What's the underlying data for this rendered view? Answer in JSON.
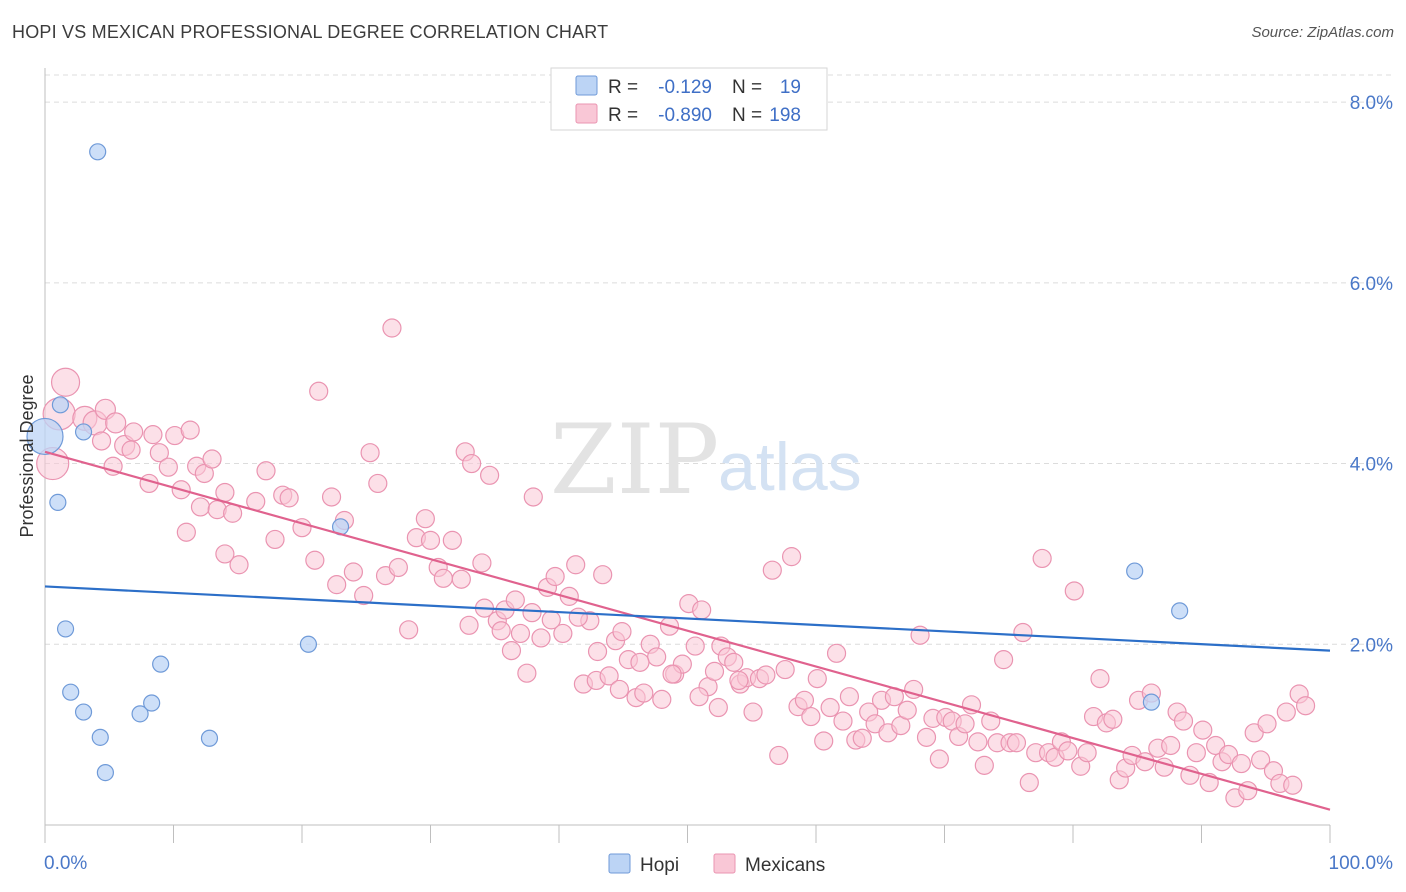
{
  "title": "HOPI VS MEXICAN PROFESSIONAL DEGREE CORRELATION CHART",
  "source": "Source: ZipAtlas.com",
  "watermark": {
    "zip": "ZIP",
    "atlas": "atlas"
  },
  "colors": {
    "hopi_fill": "#bcd4f5",
    "hopi_stroke": "#6f9ad8",
    "hopi_line": "#2c6fc8",
    "mex_fill": "#f9c7d6",
    "mex_stroke": "#ea94b1",
    "mex_line": "#e0628e",
    "grid": "#dcdcdc",
    "tick_text": "#4a78c8"
  },
  "legend": {
    "rows": [
      {
        "series": "Hopi",
        "r_label": "R =",
        "r_value": "-0.129",
        "n_label": "N =",
        "n_value": "19"
      },
      {
        "series": "Mexicans",
        "r_label": "R =",
        "r_value": "-0.890",
        "n_label": "N =",
        "n_value": "198"
      }
    ]
  },
  "chart_data": {
    "type": "scatter",
    "title": "HOPI VS MEXICAN PROFESSIONAL DEGREE CORRELATION CHART",
    "xlabel": "",
    "ylabel": "Professional Degree",
    "xlim": [
      0,
      100
    ],
    "ylim": [
      0,
      8.3
    ],
    "x_tick_labels": [
      "0.0%",
      "100.0%"
    ],
    "y_ticks": [
      2,
      4,
      6,
      8
    ],
    "y_tick_labels": [
      "2.0%",
      "4.0%",
      "6.0%",
      "8.0%"
    ],
    "legend_position": "top-center",
    "series": [
      {
        "name": "Hopi",
        "r": -0.129,
        "n": 19,
        "trend": {
          "x": [
            0,
            100
          ],
          "y": [
            2.64,
            1.93
          ]
        },
        "points": [
          [
            0.0,
            4.3,
            18
          ],
          [
            1.0,
            3.57,
            8
          ],
          [
            1.2,
            4.65,
            8
          ],
          [
            1.6,
            2.17,
            8
          ],
          [
            2.0,
            1.47,
            8
          ],
          [
            3.0,
            1.25,
            8
          ],
          [
            3.0,
            4.35,
            8
          ],
          [
            4.3,
            0.97,
            8
          ],
          [
            4.7,
            0.58,
            8
          ],
          [
            4.1,
            7.45,
            8
          ],
          [
            7.4,
            1.23,
            8
          ],
          [
            8.3,
            1.35,
            8
          ],
          [
            9.0,
            1.78,
            8
          ],
          [
            12.8,
            0.96,
            8
          ],
          [
            20.5,
            2.0,
            8
          ],
          [
            23.0,
            3.3,
            8
          ],
          [
            84.8,
            2.81,
            8
          ],
          [
            86.1,
            1.36,
            8
          ],
          [
            88.3,
            2.37,
            8
          ]
        ]
      },
      {
        "name": "Mexicans",
        "r": -0.89,
        "n": 198,
        "trend": {
          "x": [
            0,
            100
          ],
          "y": [
            4.13,
            0.17
          ]
        },
        "points": [
          [
            0.6,
            4.0,
            16
          ],
          [
            1.1,
            4.55,
            16
          ],
          [
            1.6,
            4.9,
            14
          ],
          [
            3.1,
            4.5,
            12
          ],
          [
            3.9,
            4.45,
            12
          ],
          [
            4.7,
            4.6,
            10
          ],
          [
            5.5,
            4.45,
            10
          ],
          [
            6.2,
            4.2,
            10
          ],
          [
            6.9,
            4.35,
            9
          ],
          [
            4.4,
            4.25,
            9
          ],
          [
            5.3,
            3.97,
            9
          ],
          [
            6.7,
            4.15,
            9
          ],
          [
            8.4,
            4.32,
            9
          ],
          [
            8.1,
            3.78,
            9
          ],
          [
            8.9,
            4.12,
            9
          ],
          [
            9.6,
            3.96,
            9
          ],
          [
            10.1,
            4.31,
            9
          ],
          [
            11.3,
            4.37,
            9
          ],
          [
            10.6,
            3.71,
            9
          ],
          [
            11.8,
            3.97,
            9
          ],
          [
            12.4,
            3.89,
            9
          ],
          [
            13.0,
            4.05,
            9
          ],
          [
            12.1,
            3.52,
            9
          ],
          [
            11.0,
            3.24,
            9
          ],
          [
            13.4,
            3.49,
            9
          ],
          [
            14.0,
            3.68,
            9
          ],
          [
            14.6,
            3.45,
            9
          ],
          [
            15.1,
            2.88,
            9
          ],
          [
            14.0,
            3.0,
            9
          ],
          [
            16.4,
            3.58,
            9
          ],
          [
            17.2,
            3.92,
            9
          ],
          [
            17.9,
            3.16,
            9
          ],
          [
            18.5,
            3.65,
            9
          ],
          [
            19.0,
            3.62,
            9
          ],
          [
            20.0,
            3.29,
            9
          ],
          [
            21.0,
            2.93,
            9
          ],
          [
            21.3,
            4.8,
            9
          ],
          [
            22.3,
            3.63,
            9
          ],
          [
            22.7,
            2.66,
            9
          ],
          [
            23.3,
            3.37,
            9
          ],
          [
            24.0,
            2.8,
            9
          ],
          [
            24.8,
            2.54,
            9
          ],
          [
            25.3,
            4.12,
            9
          ],
          [
            25.9,
            3.78,
            9
          ],
          [
            26.5,
            2.76,
            9
          ],
          [
            27.0,
            5.5,
            9
          ],
          [
            27.5,
            2.85,
            9
          ],
          [
            28.3,
            2.16,
            9
          ],
          [
            28.9,
            3.18,
            9
          ],
          [
            29.6,
            3.39,
            9
          ],
          [
            30.0,
            3.15,
            9
          ],
          [
            30.6,
            2.85,
            9
          ],
          [
            31.0,
            2.73,
            9
          ],
          [
            31.7,
            3.15,
            9
          ],
          [
            32.4,
            2.72,
            9
          ],
          [
            32.7,
            4.13,
            9
          ],
          [
            33.2,
            4.0,
            9
          ],
          [
            34.0,
            2.9,
            9
          ],
          [
            34.6,
            3.87,
            9
          ],
          [
            35.2,
            2.26,
            9
          ],
          [
            35.8,
            2.38,
            9
          ],
          [
            36.3,
            1.93,
            9
          ],
          [
            37.0,
            2.12,
            9
          ],
          [
            37.5,
            1.68,
            9
          ],
          [
            38.0,
            3.63,
            9
          ],
          [
            38.6,
            2.07,
            9
          ],
          [
            39.1,
            2.63,
            9
          ],
          [
            39.7,
            2.75,
            9
          ],
          [
            40.3,
            2.12,
            9
          ],
          [
            40.8,
            2.53,
            9
          ],
          [
            41.3,
            2.88,
            9
          ],
          [
            41.9,
            1.56,
            9
          ],
          [
            42.4,
            2.26,
            9
          ],
          [
            42.9,
            1.6,
            9
          ],
          [
            43.4,
            2.77,
            9
          ],
          [
            43.9,
            1.65,
            9
          ],
          [
            44.4,
            2.04,
            9
          ],
          [
            44.9,
            2.14,
            9
          ],
          [
            45.4,
            1.83,
            9
          ],
          [
            46.0,
            1.41,
            9
          ],
          [
            46.6,
            1.46,
            9
          ],
          [
            47.1,
            2.0,
            9
          ],
          [
            47.6,
            1.86,
            9
          ],
          [
            48.0,
            1.39,
            9
          ],
          [
            48.6,
            2.2,
            9
          ],
          [
            49.0,
            1.67,
            9
          ],
          [
            49.6,
            1.78,
            9
          ],
          [
            50.1,
            2.45,
            9
          ],
          [
            50.6,
            1.98,
            9
          ],
          [
            51.1,
            2.38,
            9
          ],
          [
            51.6,
            1.53,
            9
          ],
          [
            52.1,
            1.7,
            9
          ],
          [
            52.6,
            1.98,
            9
          ],
          [
            53.1,
            1.86,
            9
          ],
          [
            53.6,
            1.8,
            9
          ],
          [
            54.1,
            1.56,
            9
          ],
          [
            54.6,
            1.63,
            9
          ],
          [
            55.1,
            1.25,
            9
          ],
          [
            55.6,
            1.62,
            9
          ],
          [
            56.1,
            1.66,
            9
          ],
          [
            56.6,
            2.82,
            9
          ],
          [
            57.1,
            0.77,
            9
          ],
          [
            57.6,
            1.72,
            9
          ],
          [
            58.1,
            2.97,
            9
          ],
          [
            58.6,
            1.31,
            9
          ],
          [
            59.1,
            1.38,
            9
          ],
          [
            59.6,
            1.2,
            9
          ],
          [
            60.1,
            1.62,
            9
          ],
          [
            60.6,
            0.93,
            9
          ],
          [
            61.1,
            1.3,
            9
          ],
          [
            61.6,
            1.9,
            9
          ],
          [
            62.1,
            1.15,
            9
          ],
          [
            62.6,
            1.42,
            9
          ],
          [
            63.1,
            0.94,
            9
          ],
          [
            63.6,
            0.96,
            9
          ],
          [
            64.1,
            1.25,
            9
          ],
          [
            64.6,
            1.12,
            9
          ],
          [
            65.1,
            1.38,
            9
          ],
          [
            65.6,
            1.02,
            9
          ],
          [
            66.1,
            1.42,
            9
          ],
          [
            66.6,
            1.1,
            9
          ],
          [
            67.1,
            1.27,
            9
          ],
          [
            67.6,
            1.5,
            9
          ],
          [
            68.1,
            2.1,
            9
          ],
          [
            68.6,
            0.97,
            9
          ],
          [
            69.1,
            1.18,
            9
          ],
          [
            69.6,
            0.73,
            9
          ],
          [
            70.1,
            1.19,
            9
          ],
          [
            70.6,
            1.15,
            9
          ],
          [
            71.1,
            0.98,
            9
          ],
          [
            71.6,
            1.12,
            9
          ],
          [
            72.1,
            1.33,
            9
          ],
          [
            72.6,
            0.92,
            9
          ],
          [
            73.1,
            0.66,
            9
          ],
          [
            73.6,
            1.15,
            9
          ],
          [
            74.1,
            0.91,
            9
          ],
          [
            74.6,
            1.83,
            9
          ],
          [
            75.1,
            0.91,
            9
          ],
          [
            75.6,
            0.91,
            9
          ],
          [
            76.1,
            2.13,
            9
          ],
          [
            76.6,
            0.47,
            9
          ],
          [
            77.1,
            0.8,
            9
          ],
          [
            77.6,
            2.95,
            9
          ],
          [
            78.1,
            0.8,
            9
          ],
          [
            78.6,
            0.75,
            9
          ],
          [
            79.1,
            0.92,
            9
          ],
          [
            79.6,
            0.82,
            9
          ],
          [
            80.1,
            2.59,
            9
          ],
          [
            80.6,
            0.65,
            9
          ],
          [
            81.1,
            0.8,
            9
          ],
          [
            81.6,
            1.2,
            9
          ],
          [
            82.1,
            1.62,
            9
          ],
          [
            82.6,
            1.13,
            9
          ],
          [
            83.1,
            1.17,
            9
          ],
          [
            83.6,
            0.5,
            9
          ],
          [
            84.1,
            0.63,
            9
          ],
          [
            84.6,
            0.77,
            9
          ],
          [
            85.1,
            1.38,
            9
          ],
          [
            85.6,
            0.7,
            9
          ],
          [
            86.1,
            1.46,
            9
          ],
          [
            86.6,
            0.85,
            9
          ],
          [
            87.1,
            0.64,
            9
          ],
          [
            87.6,
            0.88,
            9
          ],
          [
            88.1,
            1.25,
            9
          ],
          [
            88.6,
            1.15,
            9
          ],
          [
            89.1,
            0.55,
            9
          ],
          [
            89.6,
            0.8,
            9
          ],
          [
            90.1,
            1.05,
            9
          ],
          [
            90.6,
            0.47,
            9
          ],
          [
            91.1,
            0.88,
            9
          ],
          [
            91.6,
            0.7,
            9
          ],
          [
            92.1,
            0.78,
            9
          ],
          [
            92.6,
            0.3,
            9
          ],
          [
            93.1,
            0.68,
            9
          ],
          [
            93.6,
            0.38,
            9
          ],
          [
            94.1,
            1.02,
            9
          ],
          [
            94.6,
            0.72,
            9
          ],
          [
            95.1,
            1.12,
            9
          ],
          [
            95.6,
            0.6,
            9
          ],
          [
            96.1,
            0.46,
            9
          ],
          [
            96.6,
            1.25,
            9
          ],
          [
            97.1,
            0.44,
            9
          ],
          [
            97.6,
            1.45,
            9
          ],
          [
            98.1,
            1.32,
            9
          ],
          [
            54.0,
            1.6,
            9
          ],
          [
            52.4,
            1.3,
            9
          ],
          [
            50.9,
            1.42,
            9
          ],
          [
            48.8,
            1.67,
            9
          ],
          [
            46.3,
            1.8,
            9
          ],
          [
            44.7,
            1.5,
            9
          ],
          [
            43.0,
            1.92,
            9
          ],
          [
            41.5,
            2.3,
            9
          ],
          [
            39.4,
            2.27,
            9
          ],
          [
            37.9,
            2.35,
            9
          ],
          [
            36.6,
            2.49,
            9
          ],
          [
            35.5,
            2.15,
            9
          ],
          [
            34.2,
            2.4,
            9
          ],
          [
            33.0,
            2.21,
            9
          ]
        ]
      }
    ]
  },
  "bottom_legend": [
    {
      "series": "Hopi",
      "label": "Hopi"
    },
    {
      "series": "Mexicans",
      "label": "Mexicans"
    }
  ]
}
